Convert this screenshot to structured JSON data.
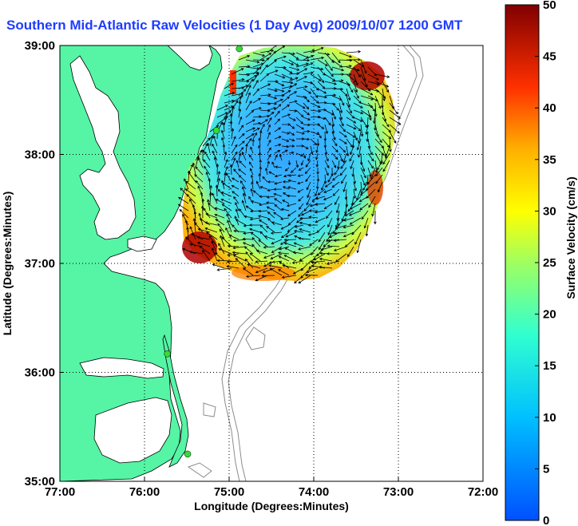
{
  "title": "Southern Mid-Atlantic Raw Velocities (1 Day Avg) 2009/10/07 1200 GMT",
  "map": {
    "x_label": "Longitude (Degrees:Minutes)",
    "y_label": "Latitude (Degrees:Minutes)",
    "x_ticks": [
      {
        "label": "77:00",
        "lon": -77
      },
      {
        "label": "76:00",
        "lon": -76
      },
      {
        "label": "75:00",
        "lon": -75
      },
      {
        "label": "74:00",
        "lon": -74
      },
      {
        "label": "73:00",
        "lon": -73
      },
      {
        "label": "72:00",
        "lon": -72
      }
    ],
    "y_ticks": [
      {
        "label": "39:00",
        "lat": 39
      },
      {
        "label": "38:00",
        "lat": 38
      },
      {
        "label": "37:00",
        "lat": 37
      },
      {
        "label": "36:00",
        "lat": 36
      },
      {
        "label": "35:00",
        "lat": 35
      }
    ],
    "lon_range": [
      -77,
      -72
    ],
    "lat_range": [
      35,
      39
    ],
    "grid": true,
    "colors": {
      "land": "#55f5a5",
      "ocean": "#ffffff",
      "vectors": "#000000",
      "isobaths": "#8c8c8c",
      "radar_sites": "#33dd33",
      "title": "#1e3cff"
    },
    "radar_sites": [
      {
        "lon": -74.88,
        "lat": 38.97
      },
      {
        "lon": -75.15,
        "lat": 38.22
      },
      {
        "lon": -75.73,
        "lat": 36.17
      },
      {
        "lon": -75.49,
        "lat": 35.25
      }
    ]
  },
  "colorbar": {
    "label": "Surface Velocity (cm/s)",
    "ticks": [
      "0",
      "5",
      "10",
      "15",
      "20",
      "25",
      "30",
      "35",
      "40",
      "45",
      "50"
    ],
    "min": 0,
    "max": 50
  }
}
